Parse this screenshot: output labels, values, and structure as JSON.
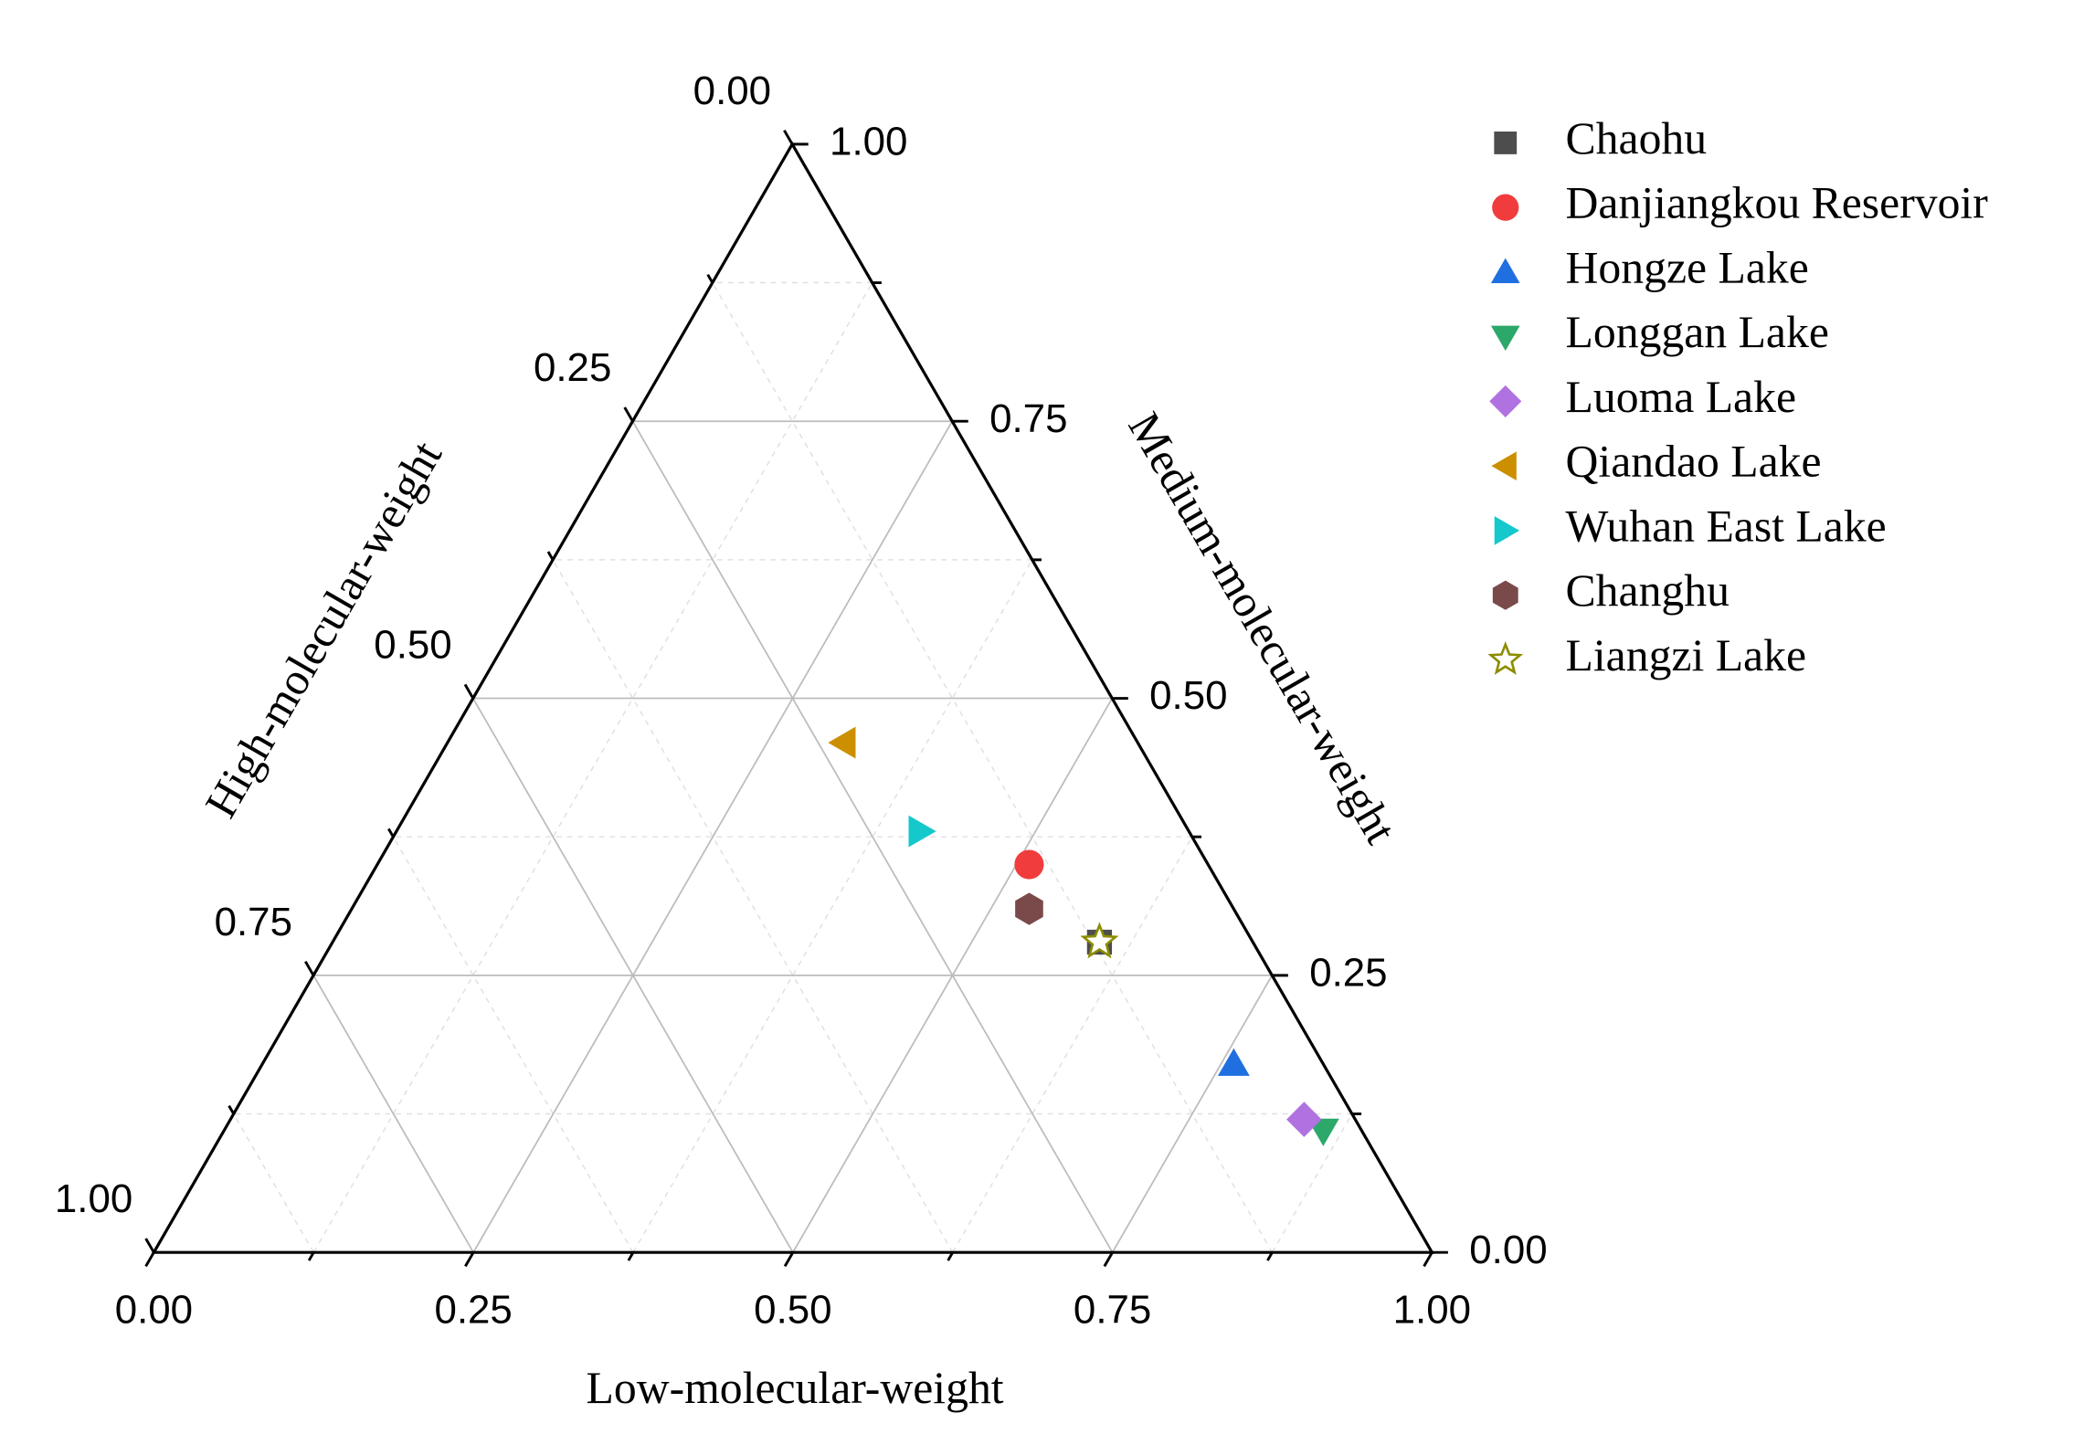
{
  "chart_data": {
    "type": "ternary",
    "axis_labels": {
      "low": "Low-molecular-weight",
      "medium": "Medium-molecular-weight",
      "high": "High-molecular-weight"
    },
    "ticks": [
      {
        "value": 0,
        "label": "0.00"
      },
      {
        "value": 0.25,
        "label": "0.25"
      },
      {
        "value": 0.5,
        "label": "0.50"
      },
      {
        "value": 0.75,
        "label": "0.75"
      },
      {
        "value": 1,
        "label": "1.00"
      }
    ],
    "minor_ticks": [
      0.125,
      0.375,
      0.625,
      0.875
    ],
    "grid": true,
    "legend": "right",
    "series": [
      {
        "name": "Chaohu",
        "color": "#4d4d4d",
        "marker": "square",
        "values": [
          0.6,
          0.28,
          0.12
        ]
      },
      {
        "name": "Danjiangkou Reservoir",
        "color": "#f03c3c",
        "marker": "circle",
        "values": [
          0.51,
          0.35,
          0.14
        ]
      },
      {
        "name": "Hongze Lake",
        "color": "#1f6fe0",
        "marker": "triangle-up",
        "values": [
          0.76,
          0.17,
          0.07
        ]
      },
      {
        "name": "Longgan Lake",
        "color": "#2ca86a",
        "marker": "triangle-down",
        "values": [
          0.86,
          0.11,
          0.03
        ]
      },
      {
        "name": "Luoma Lake",
        "color": "#b072e0",
        "marker": "diamond",
        "values": [
          0.84,
          0.12,
          0.04
        ]
      },
      {
        "name": "Qiandao Lake",
        "color": "#cc8f00",
        "marker": "triangle-left",
        "values": [
          0.31,
          0.46,
          0.23
        ]
      },
      {
        "name": "Wuhan East Lake",
        "color": "#14c8cc",
        "marker": "triangle-right",
        "values": [
          0.41,
          0.38,
          0.21
        ]
      },
      {
        "name": "Changhu",
        "color": "#7a4a4a",
        "marker": "hexagon",
        "values": [
          0.53,
          0.31,
          0.16
        ]
      },
      {
        "name": "Liangzi Lake",
        "color": "#8c8c00",
        "marker": "star",
        "values": [
          0.6,
          0.28,
          0.12
        ]
      }
    ]
  }
}
